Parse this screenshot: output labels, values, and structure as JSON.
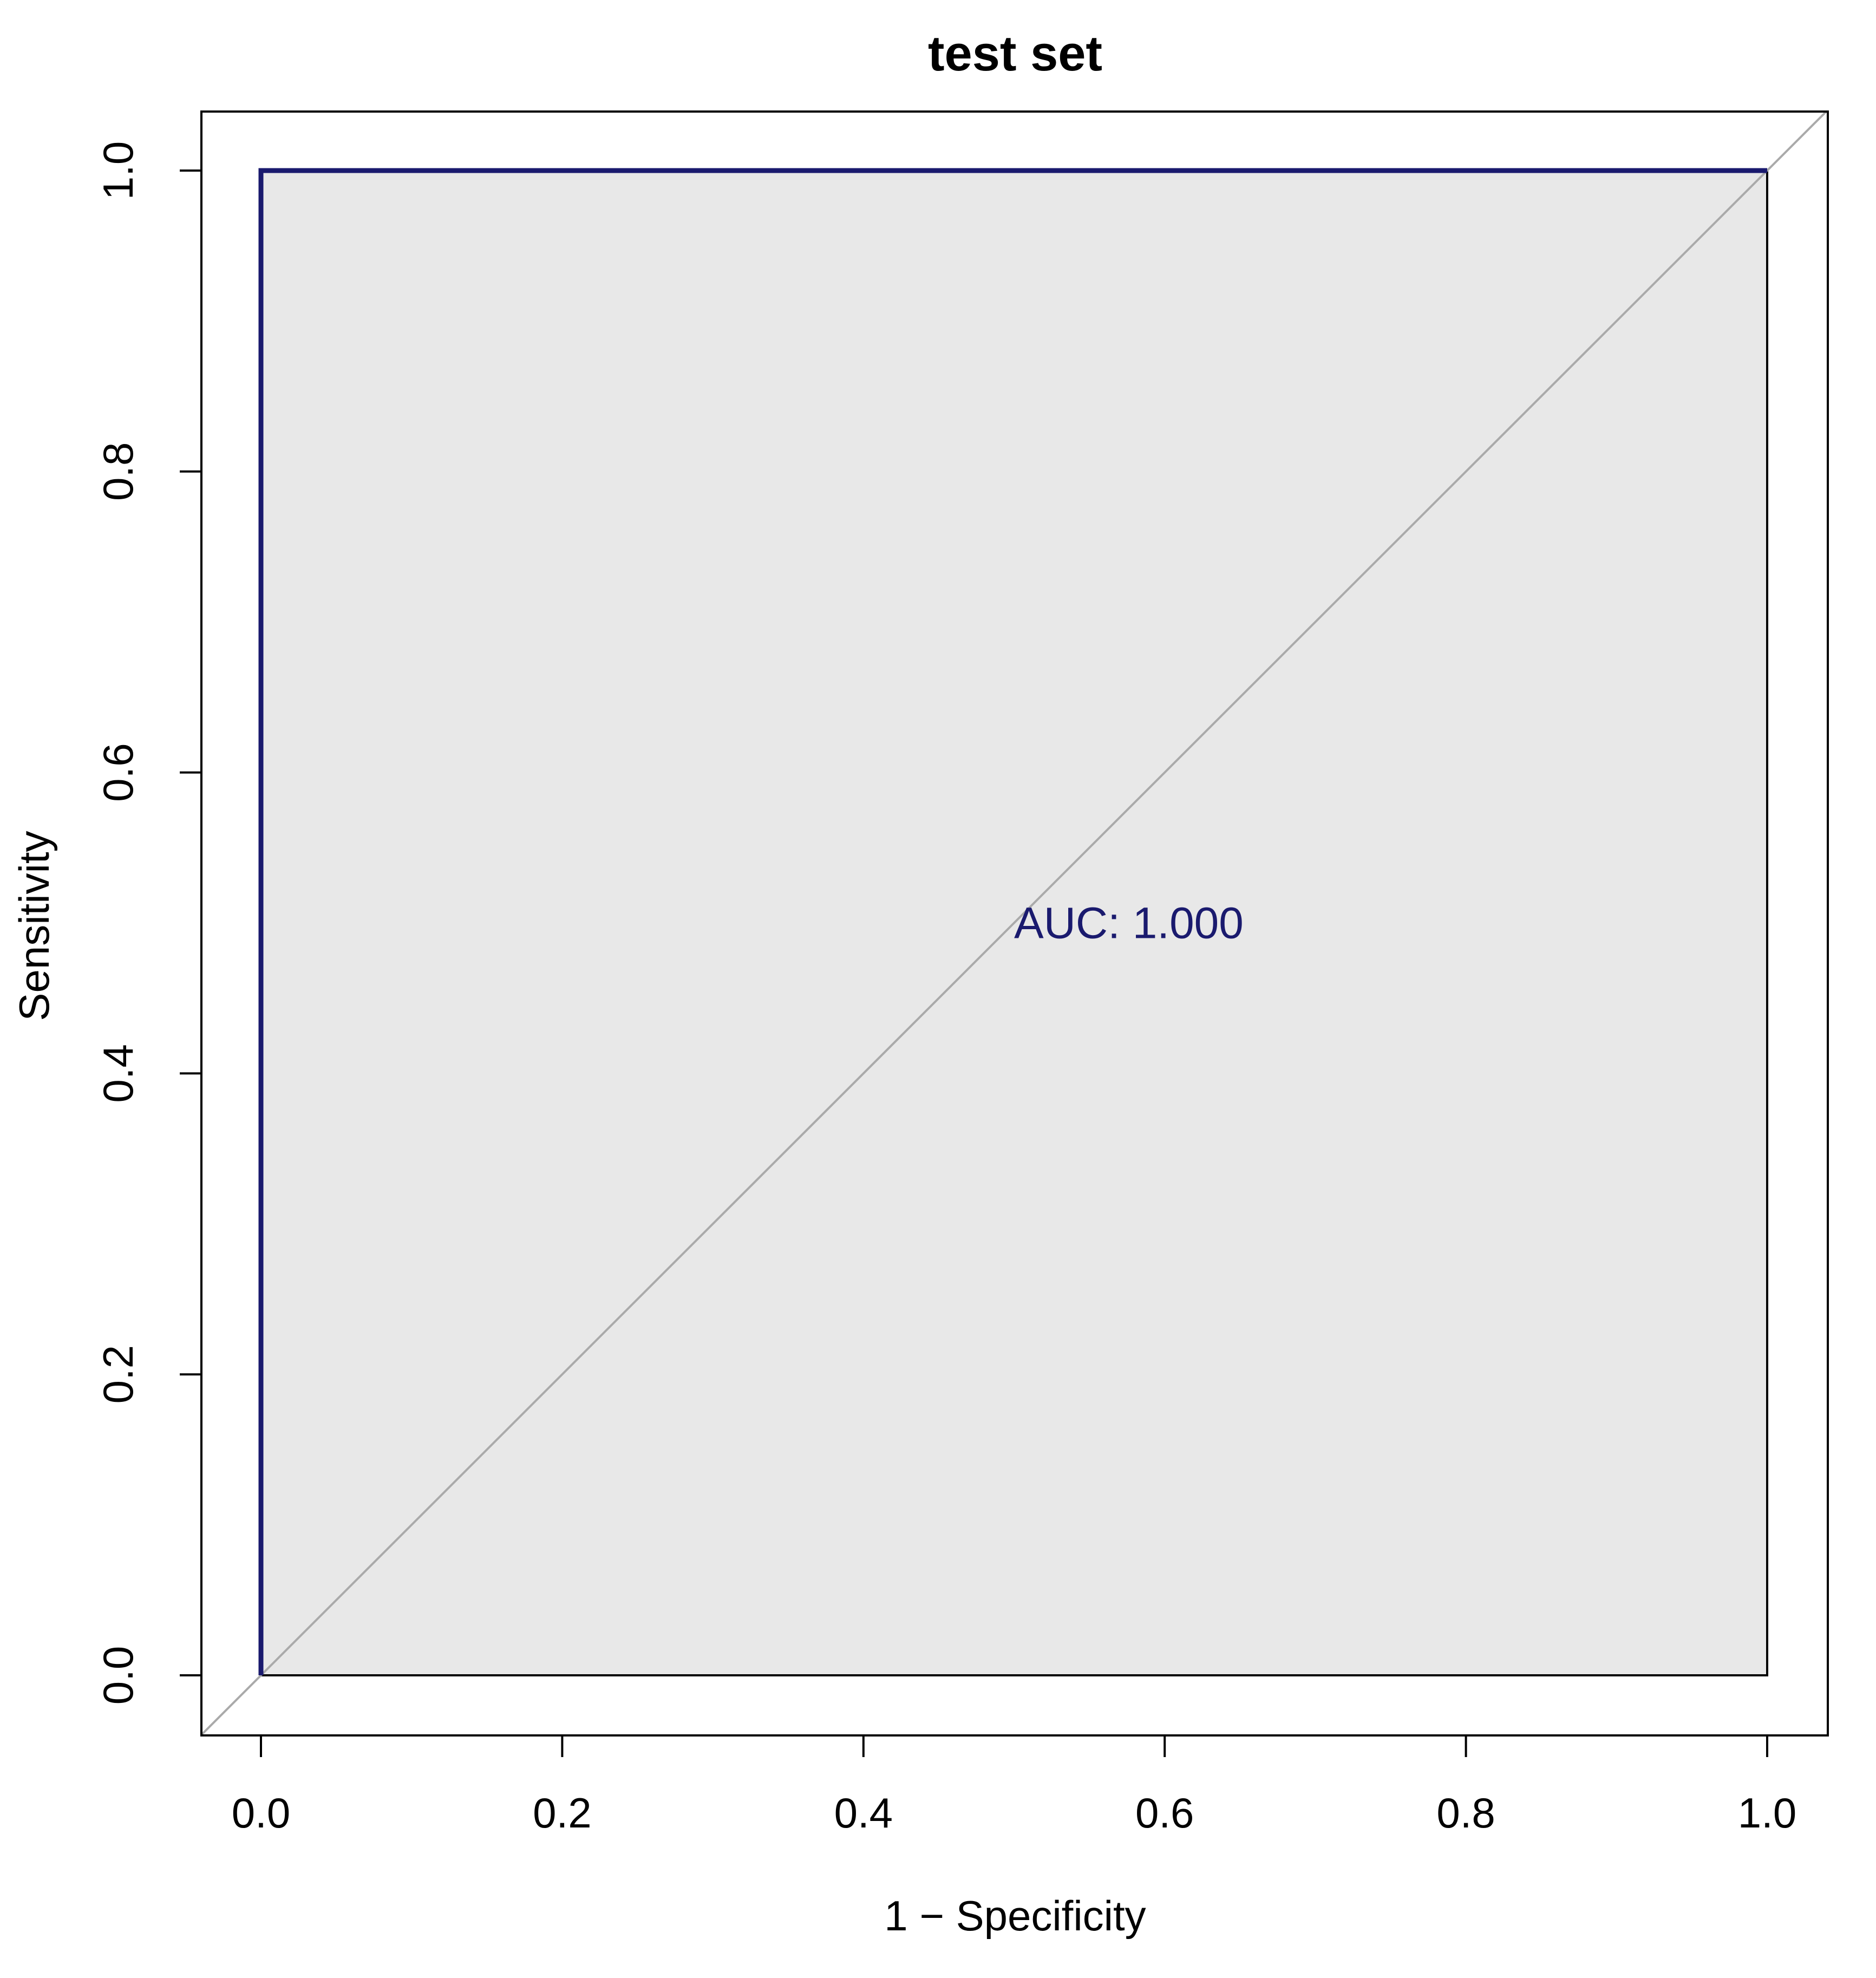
{
  "chart_data": {
    "type": "line",
    "title": "test set",
    "xlabel": "1 − Specificity",
    "ylabel": "Sensitivity",
    "xlim": [
      0.0,
      1.0
    ],
    "ylim": [
      0.0,
      1.0
    ],
    "x_ticks": [
      "0.0",
      "0.2",
      "0.4",
      "0.6",
      "0.8",
      "1.0"
    ],
    "y_ticks": [
      "0.0",
      "0.2",
      "0.4",
      "0.6",
      "0.8",
      "1.0"
    ],
    "x_tick_values": [
      0.0,
      0.2,
      0.4,
      0.6,
      0.8,
      1.0
    ],
    "y_tick_values": [
      0.0,
      0.2,
      0.4,
      0.6,
      0.8,
      1.0
    ],
    "grid": false,
    "series": [
      {
        "x": [
          0.0,
          0.0,
          1.0
        ],
        "y": [
          0.0,
          1.0,
          1.0
        ],
        "color": "#1a1a6e"
      }
    ],
    "reference_line": {
      "x": [
        -0.04,
        1.04
      ],
      "y": [
        -0.04,
        1.04
      ],
      "color": "#aaaaaa"
    },
    "auc_fill_color": "#e8e8e8",
    "annotation": {
      "text": "AUC: 1.000",
      "x": 0.5,
      "y": 0.49,
      "color": "#1a1a6e"
    }
  }
}
